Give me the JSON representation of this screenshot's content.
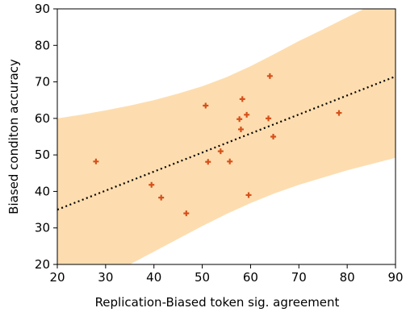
{
  "chart_data": {
    "type": "scatter",
    "xlabel": "Replication-Biased token sig. agreement",
    "ylabel": "Biased conditon accuracy",
    "xlim": [
      20,
      90
    ],
    "ylim": [
      20,
      90
    ],
    "x_ticks": [
      20,
      30,
      40,
      50,
      60,
      70,
      80,
      90
    ],
    "y_ticks": [
      20,
      30,
      40,
      50,
      60,
      70,
      80,
      90
    ],
    "grid": false,
    "legend": "none",
    "points": [
      {
        "x": 28.0,
        "y": 48.2
      },
      {
        "x": 39.5,
        "y": 41.8
      },
      {
        "x": 41.5,
        "y": 38.3
      },
      {
        "x": 46.7,
        "y": 34.0
      },
      {
        "x": 50.7,
        "y": 63.5
      },
      {
        "x": 51.2,
        "y": 48.1
      },
      {
        "x": 53.8,
        "y": 51.0
      },
      {
        "x": 55.7,
        "y": 48.2
      },
      {
        "x": 57.7,
        "y": 59.8
      },
      {
        "x": 58.0,
        "y": 57.0
      },
      {
        "x": 58.3,
        "y": 65.3
      },
      {
        "x": 59.2,
        "y": 61.0
      },
      {
        "x": 59.6,
        "y": 39.0
      },
      {
        "x": 63.7,
        "y": 60.0
      },
      {
        "x": 64.0,
        "y": 71.6
      },
      {
        "x": 64.7,
        "y": 55.0
      },
      {
        "x": 78.3,
        "y": 61.5
      }
    ],
    "trend_line": {
      "x0": 20,
      "y0": 35.0,
      "x1": 90,
      "y1": 71.5
    },
    "confidence_band": {
      "x": [
        20,
        25,
        30,
        35,
        40,
        45,
        50,
        55,
        60,
        65,
        70,
        75,
        80,
        85,
        90
      ],
      "upper": [
        60.0,
        61.0,
        62.2,
        63.5,
        65.0,
        66.8,
        68.8,
        71.3,
        74.3,
        77.7,
        81.2,
        84.4,
        87.7,
        91.0,
        94.3
      ],
      "lower": [
        10.0,
        13.5,
        16.8,
        20.0,
        23.5,
        27.0,
        30.5,
        33.8,
        36.8,
        39.5,
        41.8,
        43.8,
        45.8,
        47.5,
        49.2
      ]
    },
    "colors": {
      "points": "#d6501a",
      "band": "#fdddaf",
      "trend": "#000000",
      "axis": "#000000"
    }
  }
}
